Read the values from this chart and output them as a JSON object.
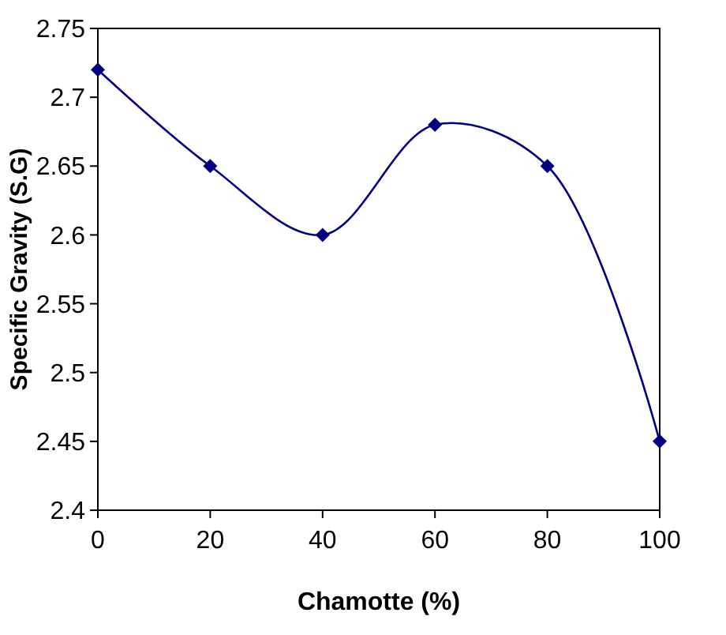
{
  "chart_data": {
    "type": "line",
    "xlabel": "Chamotte (%)",
    "ylabel": "Specific Gravity (S.G)",
    "x": [
      0,
      20,
      40,
      60,
      80,
      100
    ],
    "series": [
      {
        "color": "#000080",
        "values": [
          2.72,
          2.65,
          2.6,
          2.68,
          2.65,
          2.45
        ]
      }
    ],
    "xlim": [
      0,
      100
    ],
    "xticks": [
      0,
      20,
      40,
      60,
      80,
      100
    ],
    "ylim": [
      2.4,
      2.75
    ],
    "yticks": [
      2.4,
      2.45,
      2.5,
      2.55,
      2.6,
      2.65,
      2.7,
      2.75
    ],
    "grid": false,
    "marker": "diamond",
    "line_style": "solid"
  }
}
